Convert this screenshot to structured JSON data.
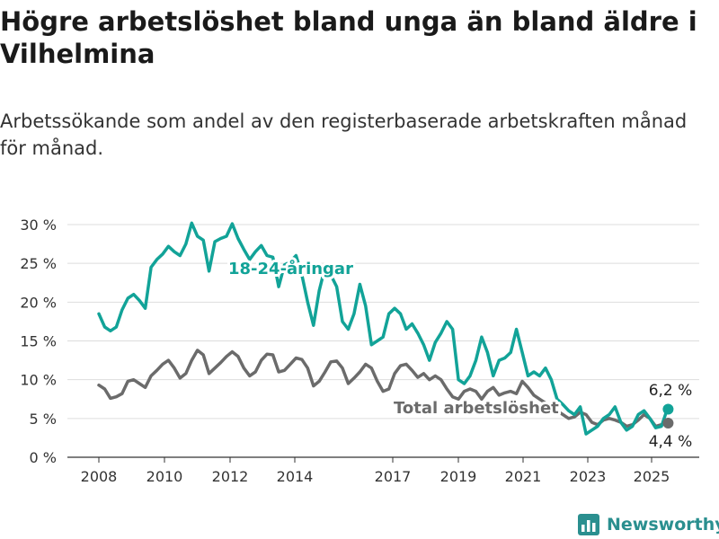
{
  "title": "Högre arbetslöshet bland unga än bland äldre i Vilhelmina",
  "subtitle": "Arbetssökande som andel av den registerbaserade arbetskraften månad för månad.",
  "brand": {
    "name": "Newsworthy",
    "logo_icon": "bar-chart-logo-icon"
  },
  "colors": {
    "youth": "#12a398",
    "total": "#6b6b6b",
    "grid": "#dddddd",
    "axis": "#333333"
  },
  "chart_data": {
    "type": "line",
    "y_unit": "%",
    "ylim": [
      0,
      30
    ],
    "y_ticks": [
      {
        "value": 0,
        "label": "0 %"
      },
      {
        "value": 5,
        "label": "5 %"
      },
      {
        "value": 10,
        "label": "10 %"
      },
      {
        "value": 15,
        "label": "15 %"
      },
      {
        "value": 20,
        "label": "20 %"
      },
      {
        "value": 25,
        "label": "25 %"
      },
      {
        "value": 30,
        "label": "30 %"
      }
    ],
    "x_ticks": [
      "2008",
      "2010",
      "2012",
      "2014",
      "2017",
      "2019",
      "2021",
      "2023",
      "2025"
    ],
    "grid": "horizontal",
    "series": [
      {
        "name": "18-24-åringar",
        "color": "#12a398",
        "end_label": "6,2 %",
        "points": [
          [
            "2008-01",
            18.5
          ],
          [
            "2008-03",
            16.8
          ],
          [
            "2008-05",
            16.3
          ],
          [
            "2008-07",
            16.8
          ],
          [
            "2008-09",
            19.0
          ],
          [
            "2008-11",
            20.5
          ],
          [
            "2009-01",
            21.0
          ],
          [
            "2009-03",
            20.2
          ],
          [
            "2009-05",
            19.2
          ],
          [
            "2009-07",
            24.5
          ],
          [
            "2009-09",
            25.5
          ],
          [
            "2009-11",
            26.2
          ],
          [
            "2010-01",
            27.2
          ],
          [
            "2010-03",
            26.5
          ],
          [
            "2010-05",
            26.0
          ],
          [
            "2010-07",
            27.5
          ],
          [
            "2010-09",
            30.2
          ],
          [
            "2010-11",
            28.5
          ],
          [
            "2011-01",
            28.0
          ],
          [
            "2011-03",
            24.0
          ],
          [
            "2011-05",
            27.8
          ],
          [
            "2011-07",
            28.2
          ],
          [
            "2011-09",
            28.5
          ],
          [
            "2011-11",
            30.1
          ],
          [
            "2012-01",
            28.2
          ],
          [
            "2012-03",
            26.8
          ],
          [
            "2012-05",
            25.5
          ],
          [
            "2012-07",
            26.5
          ],
          [
            "2012-09",
            27.3
          ],
          [
            "2012-11",
            26.0
          ],
          [
            "2013-01",
            25.8
          ],
          [
            "2013-03",
            22.0
          ],
          [
            "2013-05",
            24.8
          ],
          [
            "2013-07",
            25.2
          ],
          [
            "2013-09",
            26.0
          ],
          [
            "2013-11",
            23.5
          ],
          [
            "2014-01",
            20.0
          ],
          [
            "2014-03",
            17.0
          ],
          [
            "2014-05",
            21.5
          ],
          [
            "2014-07",
            24.5
          ],
          [
            "2014-09",
            23.5
          ],
          [
            "2014-11",
            22.0
          ],
          [
            "2015-01",
            17.5
          ],
          [
            "2015-03",
            16.5
          ],
          [
            "2015-05",
            18.5
          ],
          [
            "2015-07",
            22.3
          ],
          [
            "2015-09",
            19.5
          ],
          [
            "2015-11",
            14.5
          ],
          [
            "2016-01",
            15.0
          ],
          [
            "2016-03",
            15.5
          ],
          [
            "2016-05",
            18.5
          ],
          [
            "2016-07",
            19.2
          ],
          [
            "2016-09",
            18.5
          ],
          [
            "2016-11",
            16.5
          ],
          [
            "2017-01",
            17.2
          ],
          [
            "2017-03",
            16.0
          ],
          [
            "2017-05",
            14.5
          ],
          [
            "2017-07",
            12.5
          ],
          [
            "2017-09",
            14.8
          ],
          [
            "2017-11",
            16.0
          ],
          [
            "2018-01",
            17.5
          ],
          [
            "2018-03",
            16.5
          ],
          [
            "2018-05",
            10.0
          ],
          [
            "2018-07",
            9.5
          ],
          [
            "2018-09",
            10.5
          ],
          [
            "2018-11",
            12.5
          ],
          [
            "2019-01",
            15.5
          ],
          [
            "2019-03",
            13.5
          ],
          [
            "2019-05",
            10.5
          ],
          [
            "2019-07",
            12.5
          ],
          [
            "2019-09",
            12.8
          ],
          [
            "2019-11",
            13.5
          ],
          [
            "2020-01",
            16.5
          ],
          [
            "2020-03",
            13.5
          ],
          [
            "2020-05",
            10.5
          ],
          [
            "2020-07",
            11.0
          ],
          [
            "2020-09",
            10.5
          ],
          [
            "2020-11",
            11.5
          ],
          [
            "2021-01",
            10.0
          ],
          [
            "2021-03",
            7.5
          ],
          [
            "2021-05",
            6.8
          ],
          [
            "2021-07",
            6.0
          ],
          [
            "2021-09",
            5.5
          ],
          [
            "2021-11",
            6.5
          ],
          [
            "2022-01",
            3.0
          ],
          [
            "2022-03",
            3.5
          ],
          [
            "2022-05",
            4.0
          ],
          [
            "2022-07",
            5.0
          ],
          [
            "2022-09",
            5.5
          ],
          [
            "2022-11",
            6.5
          ],
          [
            "2023-01",
            4.5
          ],
          [
            "2023-03",
            3.5
          ],
          [
            "2023-05",
            4.0
          ],
          [
            "2023-07",
            5.5
          ],
          [
            "2023-09",
            6.0
          ],
          [
            "2023-11",
            5.0
          ],
          [
            "2024-01",
            3.8
          ],
          [
            "2024-03",
            4.0
          ],
          [
            "2024-05",
            6.2
          ]
        ]
      },
      {
        "name": "Total arbetslöshet",
        "color": "#6b6b6b",
        "end_label": "4,4 %",
        "points": [
          [
            "2008-01",
            9.3
          ],
          [
            "2008-03",
            8.8
          ],
          [
            "2008-05",
            7.6
          ],
          [
            "2008-07",
            7.8
          ],
          [
            "2008-09",
            8.2
          ],
          [
            "2008-11",
            9.8
          ],
          [
            "2009-01",
            10.0
          ],
          [
            "2009-03",
            9.5
          ],
          [
            "2009-05",
            9.0
          ],
          [
            "2009-07",
            10.5
          ],
          [
            "2009-09",
            11.2
          ],
          [
            "2009-11",
            12.0
          ],
          [
            "2010-01",
            12.5
          ],
          [
            "2010-03",
            11.5
          ],
          [
            "2010-05",
            10.2
          ],
          [
            "2010-07",
            10.8
          ],
          [
            "2010-09",
            12.5
          ],
          [
            "2010-11",
            13.8
          ],
          [
            "2011-01",
            13.2
          ],
          [
            "2011-03",
            10.8
          ],
          [
            "2011-05",
            11.5
          ],
          [
            "2011-07",
            12.2
          ],
          [
            "2011-09",
            13.0
          ],
          [
            "2011-11",
            13.6
          ],
          [
            "2012-01",
            13.0
          ],
          [
            "2012-03",
            11.5
          ],
          [
            "2012-05",
            10.5
          ],
          [
            "2012-07",
            11.0
          ],
          [
            "2012-09",
            12.5
          ],
          [
            "2012-11",
            13.3
          ],
          [
            "2013-01",
            13.2
          ],
          [
            "2013-03",
            11.0
          ],
          [
            "2013-05",
            11.2
          ],
          [
            "2013-07",
            12.0
          ],
          [
            "2013-09",
            12.8
          ],
          [
            "2013-11",
            12.6
          ],
          [
            "2014-01",
            11.5
          ],
          [
            "2014-03",
            9.2
          ],
          [
            "2014-05",
            9.8
          ],
          [
            "2014-07",
            11.0
          ],
          [
            "2014-09",
            12.3
          ],
          [
            "2014-11",
            12.4
          ],
          [
            "2015-01",
            11.5
          ],
          [
            "2015-03",
            9.5
          ],
          [
            "2015-05",
            10.2
          ],
          [
            "2015-07",
            11.0
          ],
          [
            "2015-09",
            12.0
          ],
          [
            "2015-11",
            11.5
          ],
          [
            "2016-01",
            9.8
          ],
          [
            "2016-03",
            8.5
          ],
          [
            "2016-05",
            8.8
          ],
          [
            "2016-07",
            10.8
          ],
          [
            "2016-09",
            11.8
          ],
          [
            "2016-11",
            12.0
          ],
          [
            "2017-01",
            11.2
          ],
          [
            "2017-03",
            10.3
          ],
          [
            "2017-05",
            10.8
          ],
          [
            "2017-07",
            10.0
          ],
          [
            "2017-09",
            10.5
          ],
          [
            "2017-11",
            10.0
          ],
          [
            "2018-01",
            8.8
          ],
          [
            "2018-03",
            7.8
          ],
          [
            "2018-05",
            7.5
          ],
          [
            "2018-07",
            8.5
          ],
          [
            "2018-09",
            8.8
          ],
          [
            "2018-11",
            8.5
          ],
          [
            "2019-01",
            7.5
          ],
          [
            "2019-03",
            8.5
          ],
          [
            "2019-05",
            9.0
          ],
          [
            "2019-07",
            8.0
          ],
          [
            "2019-09",
            8.3
          ],
          [
            "2019-11",
            8.5
          ],
          [
            "2020-01",
            8.2
          ],
          [
            "2020-03",
            9.8
          ],
          [
            "2020-05",
            9.0
          ],
          [
            "2020-07",
            8.0
          ],
          [
            "2020-09",
            7.5
          ],
          [
            "2020-11",
            7.0
          ],
          [
            "2021-01",
            6.5
          ],
          [
            "2021-03",
            6.0
          ],
          [
            "2021-05",
            5.5
          ],
          [
            "2021-07",
            5.0
          ],
          [
            "2021-09",
            5.2
          ],
          [
            "2021-11",
            5.8
          ],
          [
            "2022-01",
            5.5
          ],
          [
            "2022-03",
            4.5
          ],
          [
            "2022-05",
            4.2
          ],
          [
            "2022-07",
            4.8
          ],
          [
            "2022-09",
            5.0
          ],
          [
            "2022-11",
            4.8
          ],
          [
            "2023-01",
            4.5
          ],
          [
            "2023-03",
            4.0
          ],
          [
            "2023-05",
            4.2
          ],
          [
            "2023-07",
            4.8
          ],
          [
            "2023-09",
            5.5
          ],
          [
            "2023-11",
            5.0
          ],
          [
            "2024-01",
            4.0
          ],
          [
            "2024-03",
            4.2
          ],
          [
            "2024-05",
            4.4
          ]
        ]
      }
    ]
  }
}
